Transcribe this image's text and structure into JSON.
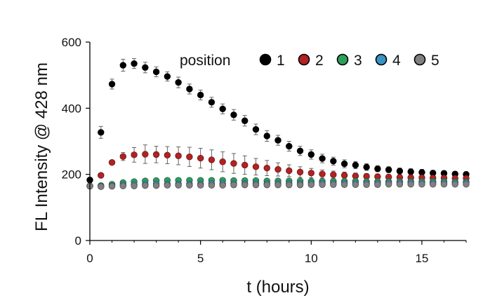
{
  "chart_data": {
    "type": "scatter",
    "title": "",
    "xlabel": "t (hours)",
    "ylabel": "FL Intensity @ 428 nm",
    "xlim": [
      0,
      17
    ],
    "ylim": [
      0,
      600
    ],
    "xticks": [
      0,
      5,
      10,
      15
    ],
    "yticks": [
      0,
      200,
      400,
      600
    ],
    "grid": false,
    "legend": {
      "title": "position",
      "placement": "top-right"
    },
    "x": [
      0,
      0.5,
      1,
      1.5,
      2,
      2.5,
      3,
      3.5,
      4,
      4.5,
      5,
      5.5,
      6,
      6.5,
      7,
      7.5,
      8,
      8.5,
      9,
      9.5,
      10,
      10.5,
      11,
      11.5,
      12,
      12.5,
      13,
      13.5,
      14,
      14.5,
      15,
      15.5,
      16,
      16.5,
      17
    ],
    "series": [
      {
        "name": "1",
        "color": "#000000",
        "values": [
          183,
          327,
          473,
          530,
          535,
          523,
          510,
          496,
          478,
          458,
          440,
          418,
          398,
          380,
          362,
          336,
          316,
          303,
          285,
          271,
          260,
          248,
          240,
          232,
          228,
          222,
          217,
          214,
          210,
          208,
          206,
          204,
          203,
          201,
          200
        ],
        "errors": [
          8,
          18,
          15,
          18,
          15,
          16,
          15,
          14,
          16,
          15,
          15,
          15,
          15,
          16,
          16,
          16,
          16,
          15,
          15,
          14,
          14,
          13,
          12,
          12,
          11,
          10,
          9,
          9,
          9,
          9,
          9,
          8,
          8,
          8,
          8
        ]
      },
      {
        "name": "2",
        "color": "#b22222",
        "values": [
          165,
          197,
          236,
          254,
          259,
          261,
          260,
          258,
          256,
          253,
          249,
          244,
          238,
          233,
          228,
          223,
          219,
          215,
          211,
          207,
          204,
          201,
          199,
          197,
          195,
          194,
          193,
          192,
          191,
          190,
          190,
          189,
          189,
          188,
          188
        ],
        "errors": [
          5,
          5,
          6,
          12,
          22,
          28,
          25,
          26,
          27,
          29,
          30,
          30,
          30,
          30,
          28,
          25,
          23,
          20,
          18,
          16,
          14,
          12,
          11,
          10,
          9,
          8,
          8,
          7,
          7,
          7,
          6,
          6,
          6,
          6,
          6
        ]
      },
      {
        "name": "3",
        "color": "#2e9e5b",
        "values": [
          165,
          166,
          170,
          175,
          178,
          180,
          181,
          182,
          182,
          182,
          182,
          182,
          182,
          181,
          181,
          181,
          180,
          180,
          180,
          180,
          179,
          179,
          179,
          179,
          179,
          178,
          178,
          178,
          178,
          178,
          178,
          178,
          178,
          177,
          177
        ],
        "errors": [
          4,
          4,
          4,
          5,
          5,
          5,
          5,
          5,
          5,
          5,
          5,
          5,
          5,
          5,
          5,
          5,
          5,
          5,
          5,
          5,
          5,
          5,
          5,
          5,
          5,
          5,
          5,
          5,
          5,
          5,
          5,
          5,
          5,
          5,
          5
        ]
      },
      {
        "name": "4",
        "color": "#3a93c3",
        "values": [
          165,
          164,
          166,
          168,
          169,
          170,
          171,
          171,
          171,
          171,
          171,
          172,
          172,
          172,
          172,
          172,
          172,
          172,
          172,
          172,
          173,
          173,
          173,
          173,
          173,
          173,
          173,
          174,
          174,
          174,
          174,
          174,
          174,
          174,
          174
        ],
        "errors": [
          4,
          4,
          4,
          4,
          4,
          4,
          4,
          4,
          4,
          4,
          4,
          4,
          4,
          4,
          4,
          4,
          4,
          4,
          4,
          4,
          4,
          4,
          4,
          4,
          4,
          4,
          4,
          4,
          4,
          4,
          4,
          4,
          4,
          4,
          4
        ]
      },
      {
        "name": "5",
        "color": "#808080",
        "values": [
          164,
          163,
          164,
          165,
          165,
          166,
          166,
          167,
          167,
          167,
          167,
          167,
          167,
          168,
          168,
          168,
          168,
          168,
          168,
          168,
          169,
          169,
          169,
          169,
          169,
          169,
          169,
          170,
          170,
          170,
          170,
          170,
          170,
          170,
          170
        ],
        "errors": [
          4,
          4,
          4,
          4,
          4,
          4,
          4,
          4,
          4,
          4,
          4,
          4,
          4,
          4,
          4,
          4,
          4,
          4,
          4,
          4,
          4,
          4,
          4,
          4,
          4,
          4,
          4,
          4,
          4,
          4,
          4,
          4,
          4,
          4,
          4
        ]
      }
    ]
  }
}
